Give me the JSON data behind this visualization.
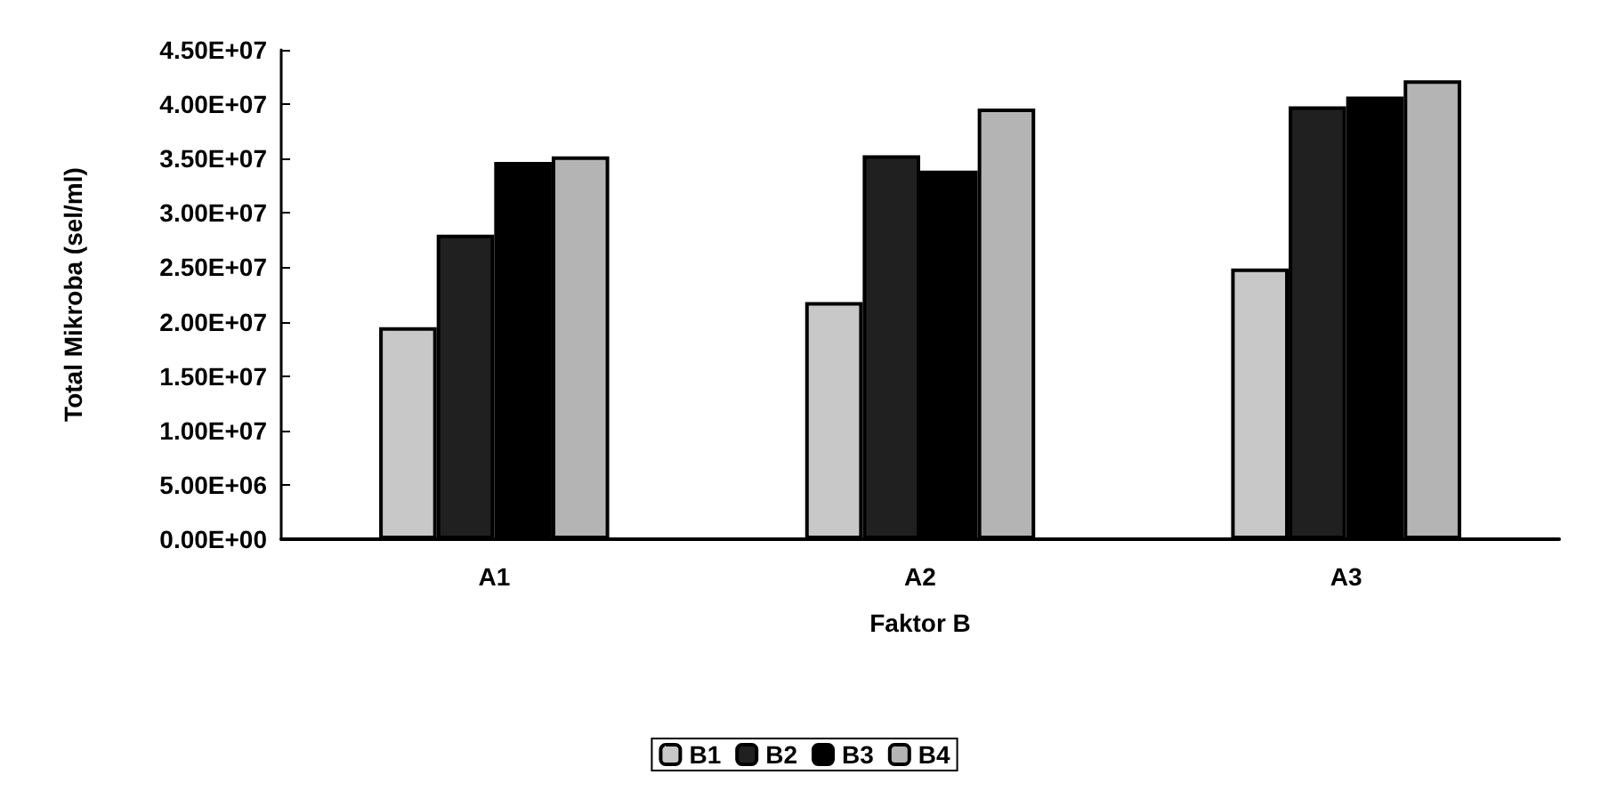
{
  "chart_data": {
    "type": "bar",
    "xlabel": "Faktor B",
    "ylabel": "Total Mikroba (sel/ml)",
    "categories": [
      "A1",
      "A2",
      "A3"
    ],
    "series": [
      {
        "name": "B1",
        "color": "#c8c8c8",
        "values": [
          19500000,
          21800000,
          24900000
        ]
      },
      {
        "name": "B2",
        "color": "#202020",
        "values": [
          28000000,
          35300000,
          39800000
        ]
      },
      {
        "name": "B3",
        "color": "#000000",
        "values": [
          34700000,
          33900000,
          40700000
        ]
      },
      {
        "name": "B4",
        "color": "#b4b4b4",
        "values": [
          35200000,
          39600000,
          42200000
        ]
      }
    ],
    "ylim": [
      0,
      45000000
    ],
    "yticks": [
      {
        "value": 0,
        "label": "0.00E+00"
      },
      {
        "value": 5000000,
        "label": "5.00E+06"
      },
      {
        "value": 10000000,
        "label": "1.00E+07"
      },
      {
        "value": 15000000,
        "label": "1.50E+07"
      },
      {
        "value": 20000000,
        "label": "2.00E+07"
      },
      {
        "value": 25000000,
        "label": "2.50E+07"
      },
      {
        "value": 30000000,
        "label": "3.00E+07"
      },
      {
        "value": 35000000,
        "label": "3.50E+07"
      },
      {
        "value": 40000000,
        "label": "4.00E+07"
      },
      {
        "value": 45000000,
        "label": "4.50E+07"
      }
    ],
    "grid": false,
    "legend": "bottom"
  }
}
